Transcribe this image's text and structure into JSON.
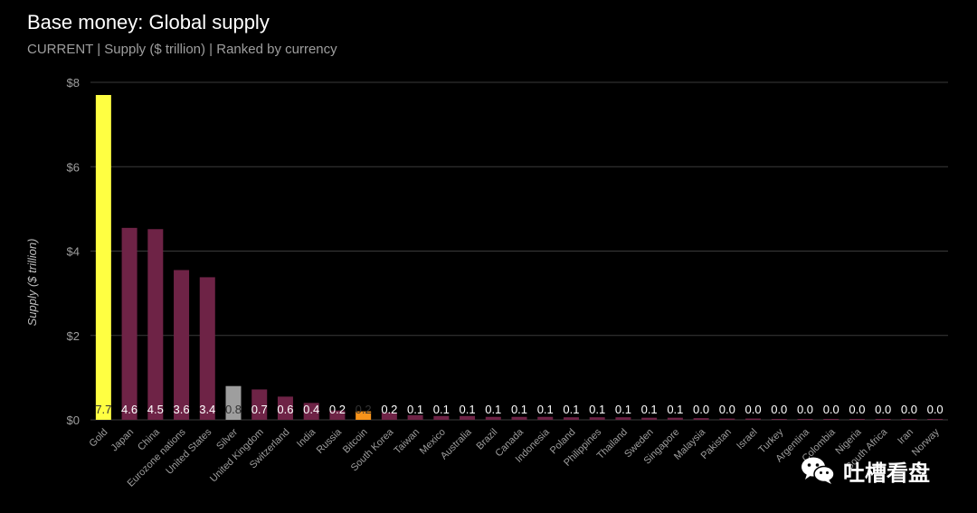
{
  "header": {
    "title": "Base money: Global supply",
    "subtitle": "CURRENT | Supply ($ trillion) | Ranked by currency"
  },
  "watermark": {
    "text": "吐槽看盘",
    "icon": "wechat-icon"
  },
  "colors": {
    "background": "#000000",
    "gold": "#ffff42",
    "silver": "#9e9e9e",
    "bitcoin": "#f7931a",
    "currency": "#6e2346",
    "grid": "#3a3a3a",
    "label_text": "#ffffff"
  },
  "chart_data": {
    "type": "bar",
    "title": "Base money: Global supply",
    "subtitle": "CURRENT | Supply ($ trillion) | Ranked by currency",
    "ylabel": "Supply ($ trillion)",
    "xlabel": "",
    "ylim": [
      0,
      8
    ],
    "yticks": [
      0,
      2,
      4,
      6,
      8
    ],
    "ytick_labels": [
      "$0",
      "$2",
      "$4",
      "$6",
      "$8"
    ],
    "grid": true,
    "categories": [
      "Gold",
      "Japan",
      "China",
      "Eurozone nations",
      "United States",
      "Silver",
      "United Kingdom",
      "Switzerland",
      "India",
      "Russia",
      "Bitcoin",
      "South Korea",
      "Taiwan",
      "Mexico",
      "Australia",
      "Brazil",
      "Canada",
      "Indonesia",
      "Poland",
      "Philippines",
      "Thailand",
      "Sweden",
      "Singapore",
      "Malaysia",
      "Pakistan",
      "Israel",
      "Turkey",
      "Argentina",
      "Colombia",
      "Nigeria",
      "South Africa",
      "Iran",
      "Norway"
    ],
    "values": [
      7.7,
      4.55,
      4.52,
      3.55,
      3.38,
      0.8,
      0.72,
      0.55,
      0.4,
      0.22,
      0.2,
      0.17,
      0.11,
      0.09,
      0.09,
      0.07,
      0.07,
      0.07,
      0.06,
      0.06,
      0.06,
      0.05,
      0.05,
      0.04,
      0.03,
      0.03,
      0.02,
      0.02,
      0.02,
      0.01,
      0.01,
      0.01,
      0.01
    ],
    "value_labels": [
      "7.7",
      "4.6",
      "4.5",
      "3.6",
      "3.4",
      "0.8",
      "0.7",
      "0.6",
      "0.4",
      "0.2",
      "0.2",
      "0.2",
      "0.1",
      "0.1",
      "0.1",
      "0.1",
      "0.1",
      "0.1",
      "0.1",
      "0.1",
      "0.1",
      "0.1",
      "0.1",
      "0.0",
      "0.0",
      "0.0",
      "0.0",
      "0.0",
      "0.0",
      "0.0",
      "0.0",
      "0.0",
      "0.0"
    ],
    "bar_colors": [
      "#ffff42",
      "#6e2346",
      "#6e2346",
      "#6e2346",
      "#6e2346",
      "#9e9e9e",
      "#6e2346",
      "#6e2346",
      "#6e2346",
      "#6e2346",
      "#f7931a",
      "#6e2346",
      "#6e2346",
      "#6e2346",
      "#6e2346",
      "#6e2346",
      "#6e2346",
      "#6e2346",
      "#6e2346",
      "#6e2346",
      "#6e2346",
      "#6e2346",
      "#6e2346",
      "#6e2346",
      "#6e2346",
      "#6e2346",
      "#6e2346",
      "#6e2346",
      "#6e2346",
      "#6e2346",
      "#6e2346",
      "#6e2346",
      "#6e2346"
    ],
    "legend": "none"
  }
}
